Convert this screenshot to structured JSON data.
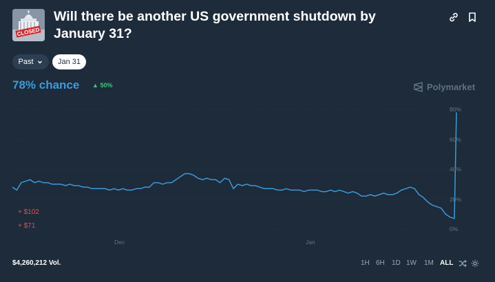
{
  "header": {
    "title": "Will there be another US government shutdown by January 31?",
    "thumb_stamp": "CLOSED"
  },
  "filters": {
    "past_label": "Past",
    "date_label": "Jan 31"
  },
  "summary": {
    "chance": "78% chance",
    "delta": "50%",
    "brand": "Polymarket"
  },
  "trades": [
    "+ $102",
    "+ $71"
  ],
  "footer": {
    "volume": "$4,260,212 Vol.",
    "ranges": [
      "1H",
      "6H",
      "1D",
      "1W",
      "1M",
      "ALL"
    ],
    "active_range": "ALL"
  },
  "icons": [
    "link-icon",
    "bookmark-icon",
    "chevron-down-icon",
    "polymarket-logo-icon",
    "shuffle-icon",
    "gear-icon"
  ],
  "chart_data": {
    "type": "line",
    "yticks": [
      "80%",
      "60%",
      "40%",
      "20%",
      "0%"
    ],
    "xticks": [
      "Dec",
      "Jan"
    ],
    "ylim": [
      0,
      80
    ],
    "grid": true,
    "color": "#3d9bd9",
    "series": [
      {
        "x": [
          0,
          1,
          2,
          3,
          4,
          5,
          6,
          7,
          8,
          9,
          10,
          11,
          12,
          13,
          14,
          15,
          16,
          17,
          18,
          19,
          20,
          21,
          22,
          23,
          24,
          25,
          26,
          27,
          28,
          29,
          30,
          31,
          32,
          33,
          34,
          35,
          36,
          37,
          38,
          39,
          40,
          41,
          42,
          43,
          44,
          45,
          46,
          47,
          48,
          49,
          50,
          51,
          52,
          53,
          54,
          55,
          56,
          57,
          58,
          59,
          60,
          61,
          62,
          63,
          64,
          65,
          66,
          67,
          68,
          69,
          70,
          71,
          72,
          73,
          74,
          75,
          76,
          77,
          78,
          79,
          80,
          81,
          82,
          83,
          84,
          85,
          86,
          87,
          88,
          89,
          90,
          91,
          92,
          93,
          94,
          95,
          96,
          97,
          98,
          99,
          100
        ],
        "values": [
          28,
          26,
          31,
          32,
          33,
          31,
          32,
          31,
          31,
          30,
          30,
          30,
          29,
          30,
          29,
          29,
          28,
          28,
          27,
          27,
          27,
          27,
          26,
          27,
          26,
          27,
          26,
          26,
          27,
          27,
          28,
          28,
          31,
          31,
          30,
          31,
          31,
          33,
          35,
          37,
          37,
          36,
          34,
          33,
          34,
          33,
          33,
          31,
          34,
          33,
          27,
          30,
          29,
          30,
          29,
          29,
          28,
          27,
          27,
          27,
          26,
          26,
          27,
          26,
          26,
          26,
          25,
          26,
          26,
          26,
          25,
          25,
          26,
          25,
          26,
          25,
          24,
          25,
          24,
          22,
          22,
          23,
          22,
          23,
          24,
          23,
          23,
          24,
          26,
          27,
          28,
          27,
          23,
          21,
          18,
          16,
          15,
          14,
          10,
          8,
          7
        ],
        "final_spike": 78
      }
    ]
  }
}
